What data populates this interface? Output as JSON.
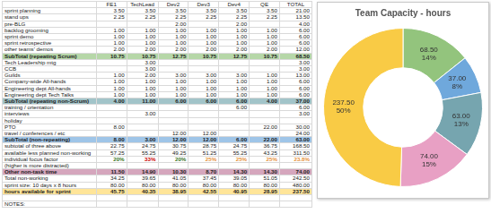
{
  "table": {
    "header": [
      null,
      "FE1",
      "TechLead",
      "Dev2",
      "Dev3",
      "Dev4",
      "QE",
      "TOTAL"
    ],
    "rows": [
      {
        "cells": [
          "sprint planning",
          "3.50",
          "3.50",
          "3.50",
          "3.50",
          "3.50",
          "3.50",
          "21.00"
        ]
      },
      {
        "cells": [
          "stand ups",
          "2.25",
          "2.25",
          "2.25",
          "2.25",
          "2.25",
          "2.25",
          "13.50"
        ]
      },
      {
        "cells": [
          "pre-BLG",
          null,
          null,
          "2.00",
          null,
          "2.00",
          null,
          "4.00"
        ]
      },
      {
        "cells": [
          "backlog grooming",
          "1.00",
          "1.00",
          "1.00",
          "1.00",
          "1.00",
          "1.00",
          "6.00"
        ]
      },
      {
        "cells": [
          "sprint demo",
          "1.00",
          "1.00",
          "1.00",
          "1.00",
          "1.00",
          "1.00",
          "6.00"
        ]
      },
      {
        "cells": [
          "sprint retrospective",
          "1.00",
          "1.00",
          "1.00",
          "1.00",
          "1.00",
          "1.00",
          "6.00"
        ]
      },
      {
        "cells": [
          "other teams' demos",
          "2.00",
          "2.00",
          "2.00",
          "2.00",
          "2.00",
          "2.00",
          "12.00"
        ]
      },
      {
        "cells": [
          "SubTotal (repeating Scrum)",
          "10.75",
          "10.75",
          "12.75",
          "10.75",
          "12.75",
          "10.75",
          "68.50"
        ],
        "color": "#b6d7a8"
      },
      {
        "cells": [
          "Tech Leadership mtg",
          null,
          "3.00",
          null,
          null,
          null,
          null,
          "3.00"
        ]
      },
      {
        "cells": [
          "CCB",
          null,
          "3.00",
          null,
          null,
          null,
          null,
          "3.00"
        ]
      },
      {
        "cells": [
          "Guilds",
          "1.00",
          "2.00",
          "3.00",
          "3.00",
          "3.00",
          "1.00",
          "13.00"
        ]
      },
      {
        "cells": [
          "Company-wide All-hands",
          "1.00",
          "1.00",
          "1.00",
          "1.00",
          "1.00",
          "1.00",
          "6.00"
        ]
      },
      {
        "cells": [
          "Engineering dept All-hands",
          "1.00",
          "1.00",
          "1.00",
          "1.00",
          "1.00",
          "1.00",
          "6.00"
        ]
      },
      {
        "cells": [
          "Engineering dept Tech Talks",
          "1.00",
          "1.00",
          "1.00",
          "1.00",
          "1.00",
          "1.00",
          "6.00"
        ]
      },
      {
        "cells": [
          "SubTotal (repeating non-Scrum)",
          "4.00",
          "11.00",
          "6.00",
          "6.00",
          "6.00",
          "4.00",
          "37.00"
        ],
        "color": "#a2c4c9"
      },
      {
        "cells": [
          "training / orientation",
          null,
          null,
          null,
          null,
          "6.00",
          null,
          "6.00"
        ]
      },
      {
        "cells": [
          "interviews",
          null,
          "3.00",
          null,
          null,
          null,
          null,
          "3.00"
        ]
      },
      {
        "cells": [
          "holiday",
          null,
          null,
          null,
          null,
          null,
          null,
          null
        ]
      },
      {
        "cells": [
          "PTO",
          "8.00",
          null,
          null,
          null,
          null,
          "22.00",
          "30.00"
        ]
      },
      {
        "cells": [
          "travel / conferences / etc",
          null,
          null,
          "12.00",
          "12.00",
          null,
          null,
          "24.00"
        ]
      },
      {
        "cells": [
          "SubTotal (non-repeating)",
          "8.00",
          "3.00",
          "12.00",
          "12.00",
          "6.00",
          "22.00",
          "63.00"
        ],
        "color": "#9fc5e8"
      },
      {
        "cells": [
          "subtotal of three above",
          "22.75",
          "24.75",
          "30.75",
          "28.75",
          "24.75",
          "36.75",
          "168.50"
        ]
      },
      {
        "cells": [
          "available less planned non-working",
          "57.25",
          "55.25",
          "49.25",
          "51.25",
          "55.25",
          "43.25",
          "311.50"
        ]
      },
      {
        "cells": [
          "individual focus factor",
          "20%",
          "33%",
          "20%",
          "25%",
          "25%",
          "25%",
          "23.8%"
        ],
        "colors": [
          null,
          "#38761d",
          "#cc0000",
          "#38761d",
          "#e69138",
          "#e69138",
          "#e69138",
          "#e69138"
        ]
      },
      {
        "cells": [
          "(higher is more distracted)",
          null,
          null,
          null,
          null,
          null,
          null,
          null
        ]
      },
      {
        "cells": [
          "Other non-task time",
          "11.50",
          "14.90",
          "10.30",
          "8.70",
          "14.30",
          "14.30",
          "74.00"
        ],
        "color": "#d5a6bd"
      },
      {
        "cells": [
          "Total non-working",
          "34.25",
          "39.65",
          "41.05",
          "37.45",
          "39.05",
          "51.05",
          "242.50"
        ]
      },
      {
        "cells": [
          "sprint size: 10 days x 8 hours",
          "80.00",
          "80.00",
          "80.00",
          "80.00",
          "80.00",
          "80.00",
          "480.00"
        ]
      },
      {
        "cells": [
          "hours available for sprint",
          "45.75",
          "40.35",
          "38.95",
          "42.55",
          "40.95",
          "28.95",
          "237.50"
        ],
        "color": "#ffe599"
      },
      {
        "cells": [
          null,
          null,
          null,
          null,
          null,
          null,
          null,
          null
        ]
      },
      {
        "cells": [
          "NOTES:",
          null,
          null,
          null,
          null,
          null,
          null,
          null
        ]
      }
    ]
  },
  "chart_data": {
    "type": "doughnut",
    "title": "Team Capacity - hours",
    "categories": [
      null,
      null,
      null,
      null,
      null
    ],
    "values": [
      68.5,
      37,
      63,
      74,
      237.5
    ],
    "value_labels": [
      "68.50",
      "37.00",
      "63.00",
      "74.00",
      "237.50"
    ],
    "percent_labels": [
      "14%",
      "8%",
      "13%",
      "15%",
      "50%"
    ],
    "colors": [
      "#93c47d",
      "#6fa8dc",
      "#76a5af",
      "#e8a0c4",
      "#f9cb45"
    ],
    "data_labels": true
  }
}
